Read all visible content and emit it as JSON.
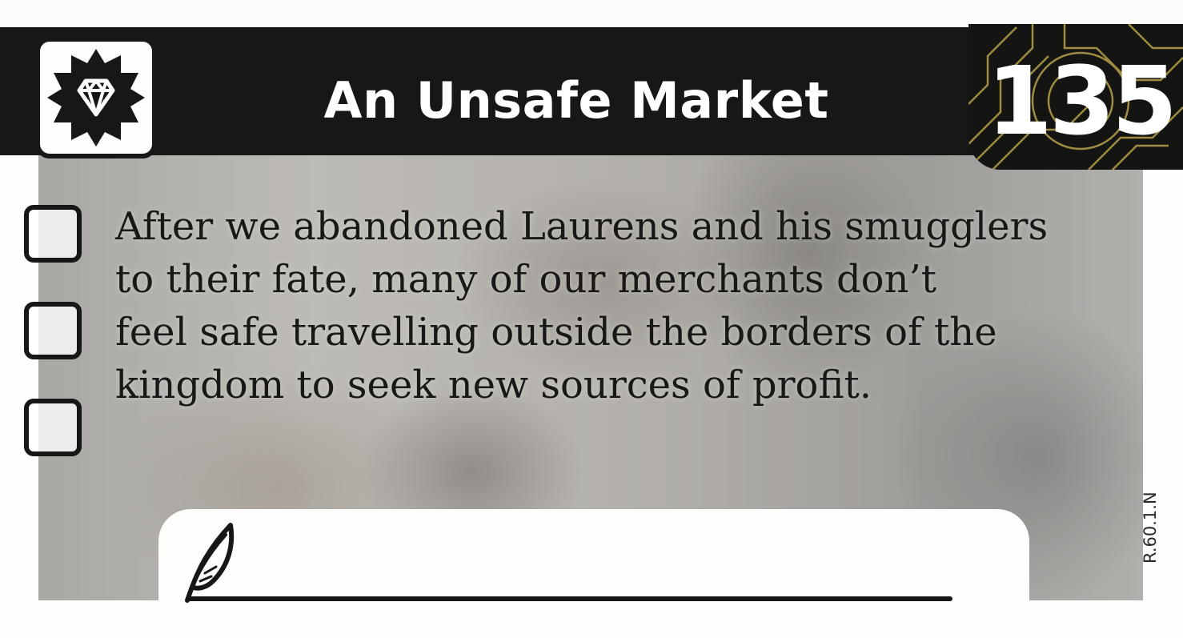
{
  "card": {
    "title": "An Unsafe Market",
    "number": "135",
    "icon": "diamond-icon",
    "text_lines": [
      "After we abandoned Laurens and his smugglers",
      "to their fate, many of our merchants don’t",
      "feel safe travelling outside the borders of the",
      "kingdom to seek new sources of profit."
    ],
    "checkboxes": 3,
    "code": "R.60.1.N",
    "colors": {
      "band": "#171716",
      "text": "#191817",
      "accent_gold": "#b5a24a"
    }
  }
}
